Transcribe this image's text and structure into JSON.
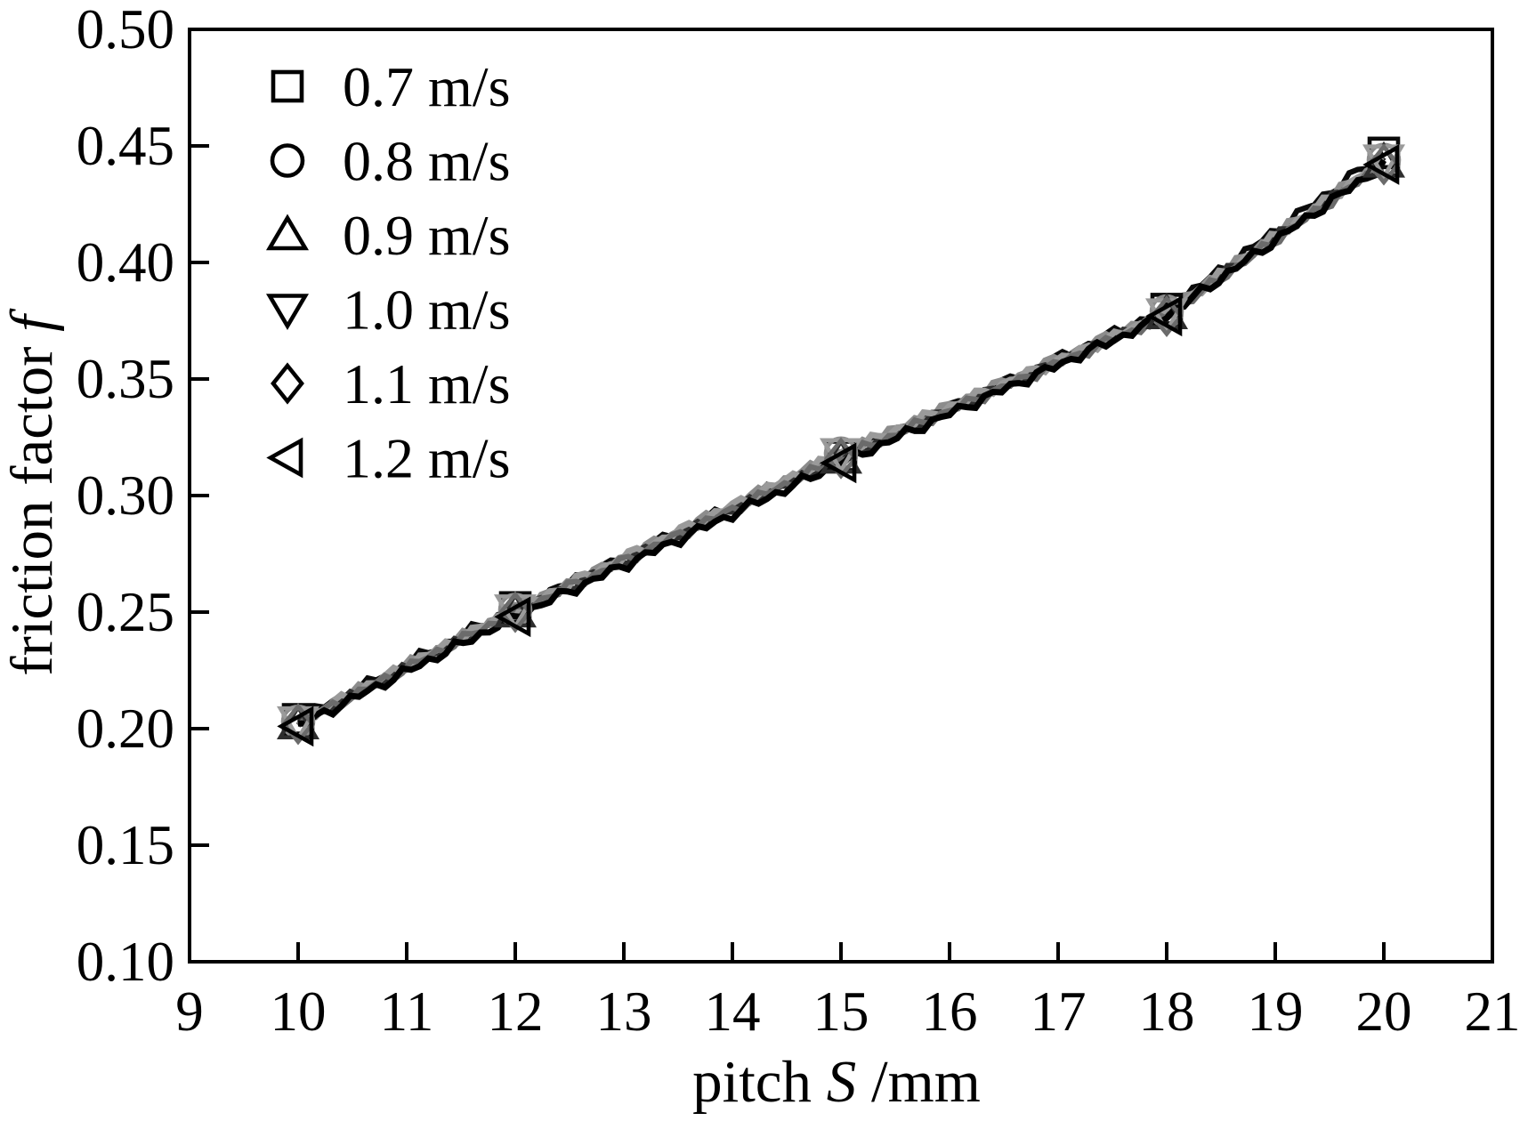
{
  "chart_data": {
    "type": "line",
    "title": "",
    "xlabel": "pitch S/mm",
    "ylabel": "friction factor f",
    "xlabel_parts": {
      "prefix": "pitch ",
      "variable": "S",
      "suffix": "/mm"
    },
    "ylabel_parts": {
      "prefix": "friction factor ",
      "variable": "f"
    },
    "xlim": [
      9,
      21
    ],
    "ylim": [
      0.1,
      0.5
    ],
    "x_tick_labels": [
      "9",
      "10",
      "11",
      "12",
      "13",
      "14",
      "15",
      "16",
      "17",
      "18",
      "19",
      "20",
      "21"
    ],
    "x_tick_values": [
      9,
      10,
      11,
      12,
      13,
      14,
      15,
      16,
      17,
      18,
      19,
      20,
      21
    ],
    "y_tick_labels": [
      "0.10",
      "0.15",
      "0.20",
      "0.25",
      "0.30",
      "0.35",
      "0.40",
      "0.45",
      "0.50"
    ],
    "y_tick_values": [
      0.1,
      0.15,
      0.2,
      0.25,
      0.3,
      0.35,
      0.4,
      0.45,
      0.5
    ],
    "grid": false,
    "frame": true,
    "background": "#ffffff",
    "axis_color": "#000000",
    "legend_position": "top-left",
    "x": [
      10,
      12,
      15,
      18,
      20
    ],
    "series": [
      {
        "name": "0.7 m/s",
        "marker": "square",
        "color": "#0a0a0a",
        "values": [
          0.204,
          0.252,
          0.317,
          0.38,
          0.447
        ]
      },
      {
        "name": "0.8 m/s",
        "marker": "circle",
        "color": "#8c8c8c",
        "values": [
          0.203,
          0.251,
          0.318,
          0.379,
          0.444
        ]
      },
      {
        "name": "0.9 m/s",
        "marker": "triangle-up",
        "color": "#2e2e2e",
        "values": [
          0.202,
          0.25,
          0.316,
          0.378,
          0.443
        ]
      },
      {
        "name": "1.0 m/s",
        "marker": "triangle-down",
        "color": "#9a9a9a",
        "values": [
          0.203,
          0.251,
          0.318,
          0.378,
          0.444
        ]
      },
      {
        "name": "1.1 m/s",
        "marker": "diamond",
        "color": "#6b6b6b",
        "values": [
          0.202,
          0.25,
          0.316,
          0.377,
          0.442
        ]
      },
      {
        "name": "1.2 m/s",
        "marker": "triangle-left",
        "color": "#000000",
        "values": [
          0.201,
          0.248,
          0.314,
          0.377,
          0.442
        ]
      }
    ],
    "legend_entries": [
      "0.7 m/s",
      "0.8 m/s",
      "0.9 m/s",
      "1.0 m/s",
      "1.1 m/s",
      "1.2 m/s"
    ]
  }
}
